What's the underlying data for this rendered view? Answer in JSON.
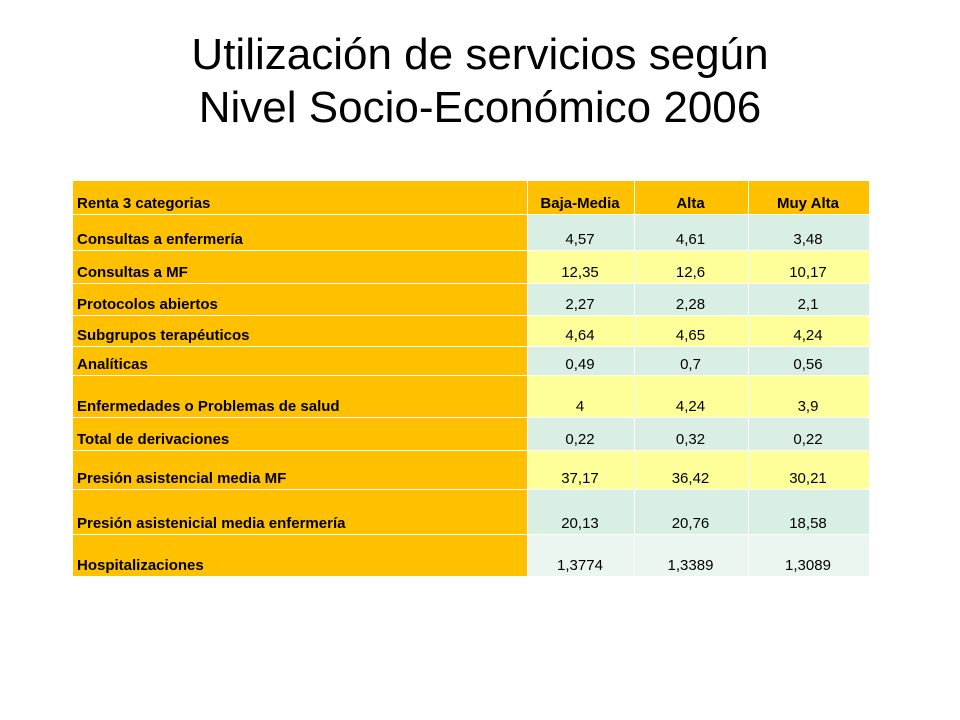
{
  "title": {
    "line1": "Utilización de servicios según",
    "line2": "Nivel Socio-Económico 2006"
  },
  "table": {
    "headers": [
      "Renta 3 categorias",
      "Baja-Media",
      "Alta",
      "Muy Alta"
    ],
    "rows": [
      {
        "label": "Consultas a enfermería",
        "values": [
          "4,57",
          "4,61",
          "3,48"
        ]
      },
      {
        "label": "Consultas a MF",
        "values": [
          "12,35",
          "12,6",
          "10,17"
        ]
      },
      {
        "label": "Protocolos abiertos",
        "values": [
          "2,27",
          "2,28",
          "2,1"
        ]
      },
      {
        "label": "Subgrupos terapéuticos",
        "values": [
          "4,64",
          "4,65",
          "4,24"
        ]
      },
      {
        "label": "Analíticas",
        "values": [
          "0,49",
          "0,7",
          "0,56"
        ]
      },
      {
        "label": "Enfermedades o Problemas de salud",
        "values": [
          "4",
          "4,24",
          "3,9"
        ]
      },
      {
        "label": "Total de derivaciones",
        "values": [
          "0,22",
          "0,32",
          "0,22"
        ]
      },
      {
        "label": "Presión asistencial media MF",
        "values": [
          "37,17",
          "36,42",
          "30,21"
        ]
      },
      {
        "label": "Presión asistenicial media enfermería",
        "values": [
          "20,13",
          "20,76",
          "18,58"
        ]
      },
      {
        "label": "Hospitalizaciones",
        "values": [
          "1,3774",
          "1,3389",
          "1,3089"
        ]
      }
    ]
  },
  "colors": {
    "header_fill": "#FFC000",
    "row_fill_green": "#D9EFE4",
    "row_fill_yellow": "#FFFF99"
  }
}
